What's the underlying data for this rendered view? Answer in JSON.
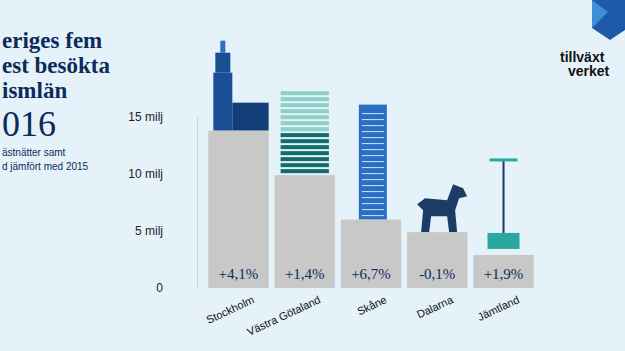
{
  "chart_data": {
    "type": "bar",
    "title": "eriges fem\nest besökta\nismlän\n016",
    "subtitle": "ästnätter samt\nd jämfört med 2015",
    "annotations": [
      "tillväxt\nverket"
    ],
    "categories": [
      "Stockholm",
      "Västra Götaland",
      "Skåne",
      "Dalarna",
      "Jämtland"
    ],
    "values": [
      13.8,
      9.9,
      6.0,
      4.9,
      2.9
    ],
    "change_labels": [
      "+4,1%",
      "+1,4%",
      "+6,7%",
      "-0,1%",
      "+1,9%"
    ],
    "color": "#c8c8c8",
    "ylim": [
      0,
      15
    ],
    "yticks": [
      0,
      {
        "value": 5,
        "label": "5 milj"
      },
      {
        "value": 10,
        "label": "10 milj"
      },
      {
        "value": 15,
        "label": "15 milj"
      }
    ],
    "grid": false
  }
}
